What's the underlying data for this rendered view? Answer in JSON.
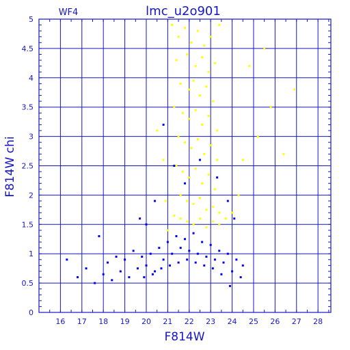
{
  "chart_data": {
    "type": "scatter",
    "title": "lmc_u2o901",
    "panel_label": "WF4",
    "xlabel": "F814W",
    "ylabel": "F814W chi",
    "xlim": [
      15,
      28.6
    ],
    "ylim": [
      0,
      5
    ],
    "x_ticks": [
      16,
      17,
      18,
      19,
      20,
      21,
      22,
      23,
      24,
      25,
      26,
      27,
      28
    ],
    "y_ticks": [
      0,
      0.5,
      1,
      1.5,
      2,
      2.5,
      3,
      3.5,
      4,
      4.5,
      5
    ],
    "y_tick_labels": [
      "0",
      "0.5",
      "1",
      "1.5",
      "2",
      "2.5",
      "3",
      "3.5",
      "4",
      "4.5",
      "5"
    ],
    "grid": true,
    "series": [
      {
        "color": "#ffff00",
        "points": [
          [
            21.2,
            4.9
          ],
          [
            21.5,
            4.7
          ],
          [
            21.8,
            4.85
          ],
          [
            22.1,
            4.6
          ],
          [
            22.4,
            4.8
          ],
          [
            22.7,
            4.55
          ],
          [
            23.0,
            4.7
          ],
          [
            23.4,
            4.9
          ],
          [
            21.4,
            4.3
          ],
          [
            21.9,
            4.4
          ],
          [
            22.3,
            4.2
          ],
          [
            22.6,
            4.35
          ],
          [
            22.9,
            4.1
          ],
          [
            23.2,
            4.25
          ],
          [
            21.6,
            3.9
          ],
          [
            22.0,
            3.8
          ],
          [
            22.2,
            3.95
          ],
          [
            22.5,
            3.7
          ],
          [
            22.8,
            3.85
          ],
          [
            23.1,
            3.6
          ],
          [
            21.3,
            3.5
          ],
          [
            21.7,
            3.4
          ],
          [
            22.0,
            3.3
          ],
          [
            22.3,
            3.45
          ],
          [
            22.6,
            3.2
          ],
          [
            22.9,
            3.35
          ],
          [
            23.3,
            3.1
          ],
          [
            21.5,
            3.0
          ],
          [
            21.8,
            2.9
          ],
          [
            22.1,
            2.8
          ],
          [
            22.4,
            2.95
          ],
          [
            22.7,
            2.7
          ],
          [
            23.0,
            2.85
          ],
          [
            23.3,
            2.6
          ],
          [
            21.4,
            2.5
          ],
          [
            21.7,
            2.4
          ],
          [
            22.0,
            2.3
          ],
          [
            22.3,
            2.45
          ],
          [
            22.6,
            2.2
          ],
          [
            22.9,
            2.35
          ],
          [
            23.2,
            2.1
          ],
          [
            21.6,
            2.0
          ],
          [
            21.9,
            1.9
          ],
          [
            22.2,
            1.85
          ],
          [
            22.5,
            1.95
          ],
          [
            22.8,
            1.75
          ],
          [
            23.1,
            1.8
          ],
          [
            23.4,
            1.7
          ],
          [
            21.3,
            1.65
          ],
          [
            21.6,
            1.6
          ],
          [
            21.9,
            1.55
          ],
          [
            22.2,
            1.5
          ],
          [
            22.5,
            1.6
          ],
          [
            22.8,
            1.45
          ],
          [
            23.1,
            1.55
          ],
          [
            23.4,
            1.5
          ],
          [
            23.7,
            1.6
          ],
          [
            24.0,
            1.7
          ],
          [
            24.3,
            2.0
          ],
          [
            24.5,
            2.6
          ],
          [
            25.2,
            3.0
          ],
          [
            25.8,
            3.5
          ],
          [
            26.4,
            2.7
          ],
          [
            26.9,
            3.8
          ],
          [
            24.8,
            4.2
          ],
          [
            25.5,
            4.5
          ],
          [
            20.8,
            2.6
          ],
          [
            20.5,
            3.1
          ],
          [
            21.0,
            1.4
          ],
          [
            20.9,
            1.9
          ]
        ]
      },
      {
        "color": "#0000ff",
        "points": [
          [
            16.3,
            0.9
          ],
          [
            16.8,
            0.6
          ],
          [
            17.2,
            0.75
          ],
          [
            17.6,
            0.5
          ],
          [
            17.8,
            1.3
          ],
          [
            18.0,
            0.65
          ],
          [
            18.2,
            0.85
          ],
          [
            18.4,
            0.55
          ],
          [
            18.6,
            0.95
          ],
          [
            18.8,
            0.7
          ],
          [
            19.0,
            0.9
          ],
          [
            19.2,
            0.6
          ],
          [
            19.4,
            1.05
          ],
          [
            19.6,
            0.75
          ],
          [
            19.8,
            0.95
          ],
          [
            20.0,
            0.8
          ],
          [
            20.2,
            1.0
          ],
          [
            20.4,
            0.7
          ],
          [
            20.6,
            1.1
          ],
          [
            20.8,
            0.9
          ],
          [
            21.0,
            1.2
          ],
          [
            21.2,
            1.0
          ],
          [
            21.4,
            1.3
          ],
          [
            21.6,
            1.1
          ],
          [
            21.8,
            1.25
          ],
          [
            22.0,
            1.05
          ],
          [
            22.2,
            1.35
          ],
          [
            22.4,
            1.0
          ],
          [
            22.6,
            1.2
          ],
          [
            22.8,
            0.95
          ],
          [
            23.0,
            1.15
          ],
          [
            23.2,
            0.9
          ],
          [
            23.4,
            1.05
          ],
          [
            23.6,
            0.85
          ],
          [
            23.8,
            1.0
          ],
          [
            24.0,
            0.7
          ],
          [
            24.2,
            0.9
          ],
          [
            24.4,
            0.6
          ],
          [
            24.5,
            0.8
          ],
          [
            23.9,
            0.45
          ],
          [
            23.5,
            0.65
          ],
          [
            23.1,
            0.75
          ],
          [
            22.7,
            0.8
          ],
          [
            22.3,
            0.85
          ],
          [
            21.9,
            0.9
          ],
          [
            21.5,
            0.85
          ],
          [
            21.1,
            0.8
          ],
          [
            20.7,
            0.75
          ],
          [
            20.3,
            0.65
          ],
          [
            19.9,
            0.6
          ],
          [
            20.0,
            1.5
          ],
          [
            20.8,
            3.2
          ],
          [
            21.3,
            2.5
          ],
          [
            21.8,
            2.2
          ],
          [
            22.5,
            2.6
          ],
          [
            23.3,
            2.3
          ],
          [
            23.8,
            1.9
          ],
          [
            24.1,
            1.6
          ],
          [
            19.7,
            1.6
          ],
          [
            20.4,
            1.9
          ]
        ]
      }
    ]
  }
}
